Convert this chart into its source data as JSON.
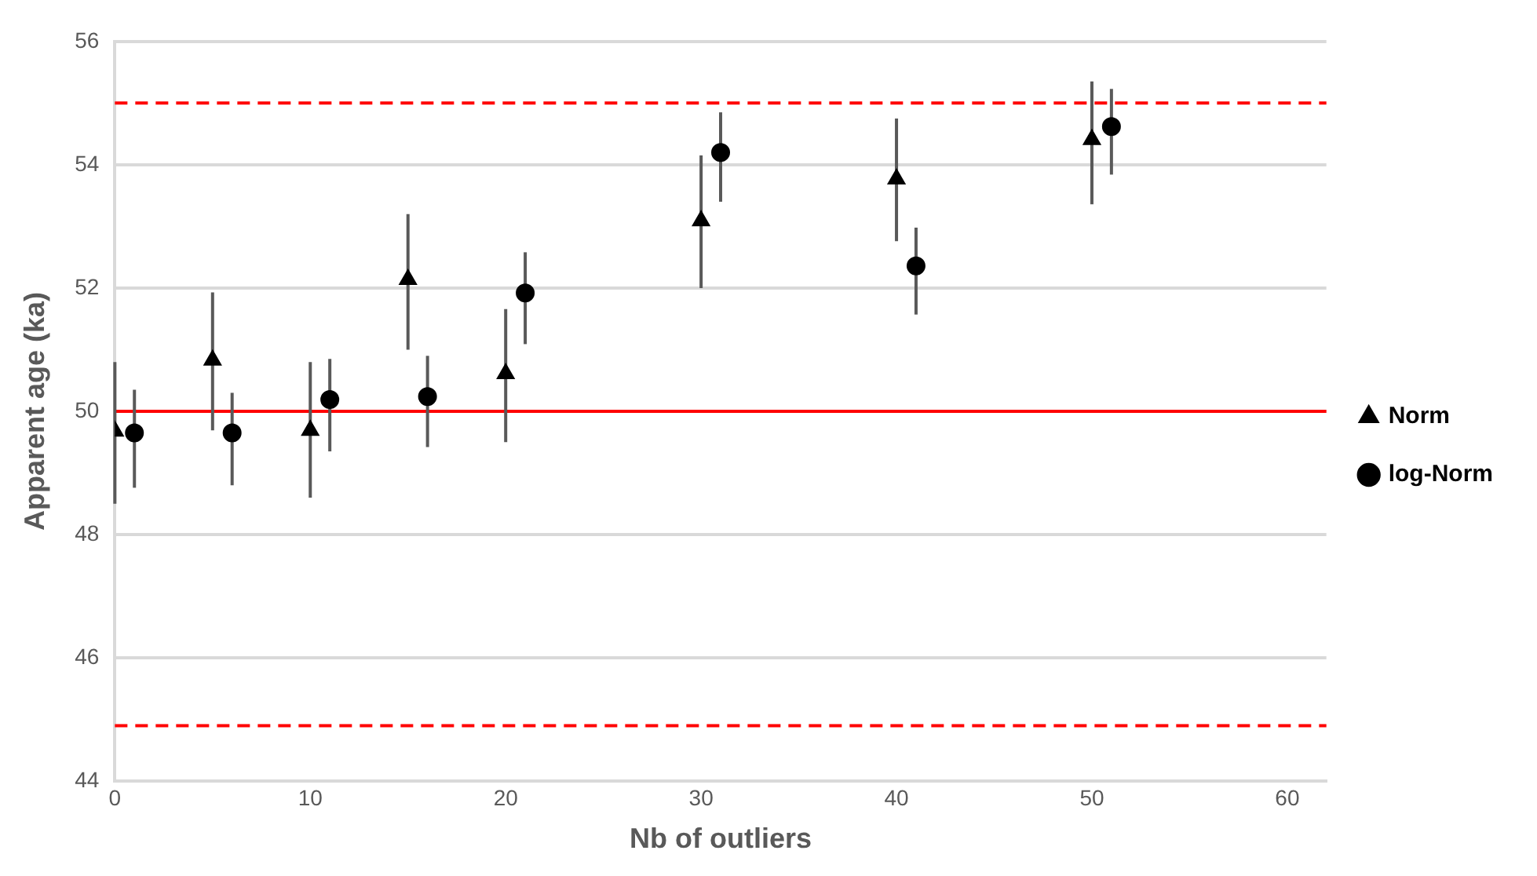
{
  "chart_data": {
    "type": "scatter",
    "xlabel": "Nb of outliers",
    "ylabel": "Apparent age (ka)",
    "xlim": [
      0,
      62
    ],
    "xticks": [
      0,
      10,
      20,
      30,
      40,
      50,
      60
    ],
    "ylim": [
      44,
      56
    ],
    "yticks": [
      44,
      46,
      48,
      50,
      52,
      54,
      56
    ],
    "grid": "y",
    "legend": "right",
    "series": [
      {
        "name": "Norm",
        "color": "#000000",
        "marker": "triangle",
        "x": [
          0,
          5,
          10,
          15,
          20,
          30,
          40,
          50
        ],
        "values": [
          49.68,
          50.83,
          49.69,
          52.14,
          50.61,
          53.09,
          53.77,
          54.41
        ],
        "errors": [
          [
            48.5,
            50.8
          ],
          [
            49.69,
            51.93
          ],
          [
            48.6,
            50.8
          ],
          [
            51.0,
            53.2
          ],
          [
            49.5,
            51.66
          ],
          [
            52.0,
            54.15
          ],
          [
            52.76,
            54.75
          ],
          [
            53.36,
            55.35
          ]
        ]
      },
      {
        "name": "log-Norm",
        "color": "#000000",
        "marker": "circle",
        "x": [
          1,
          6,
          11,
          16,
          21,
          31,
          41,
          51
        ],
        "values": [
          49.65,
          49.65,
          50.19,
          50.24,
          51.92,
          54.2,
          52.36,
          54.62
        ],
        "errors": [
          [
            48.76,
            50.35
          ],
          [
            48.8,
            50.3
          ],
          [
            49.35,
            50.85
          ],
          [
            49.42,
            50.9
          ],
          [
            51.09,
            52.58
          ],
          [
            53.4,
            54.85
          ],
          [
            51.57,
            52.98
          ],
          [
            53.84,
            55.23
          ]
        ]
      }
    ],
    "ref_lines": [
      {
        "axis": "y",
        "value": 55,
        "color": "#ff0000",
        "line_style": "dashed"
      },
      {
        "axis": "y",
        "value": 50,
        "color": "#ff0000",
        "line_style": "solid"
      },
      {
        "axis": "y",
        "value": 44.9,
        "color": "#ff0000",
        "line_style": "dashed"
      }
    ]
  }
}
